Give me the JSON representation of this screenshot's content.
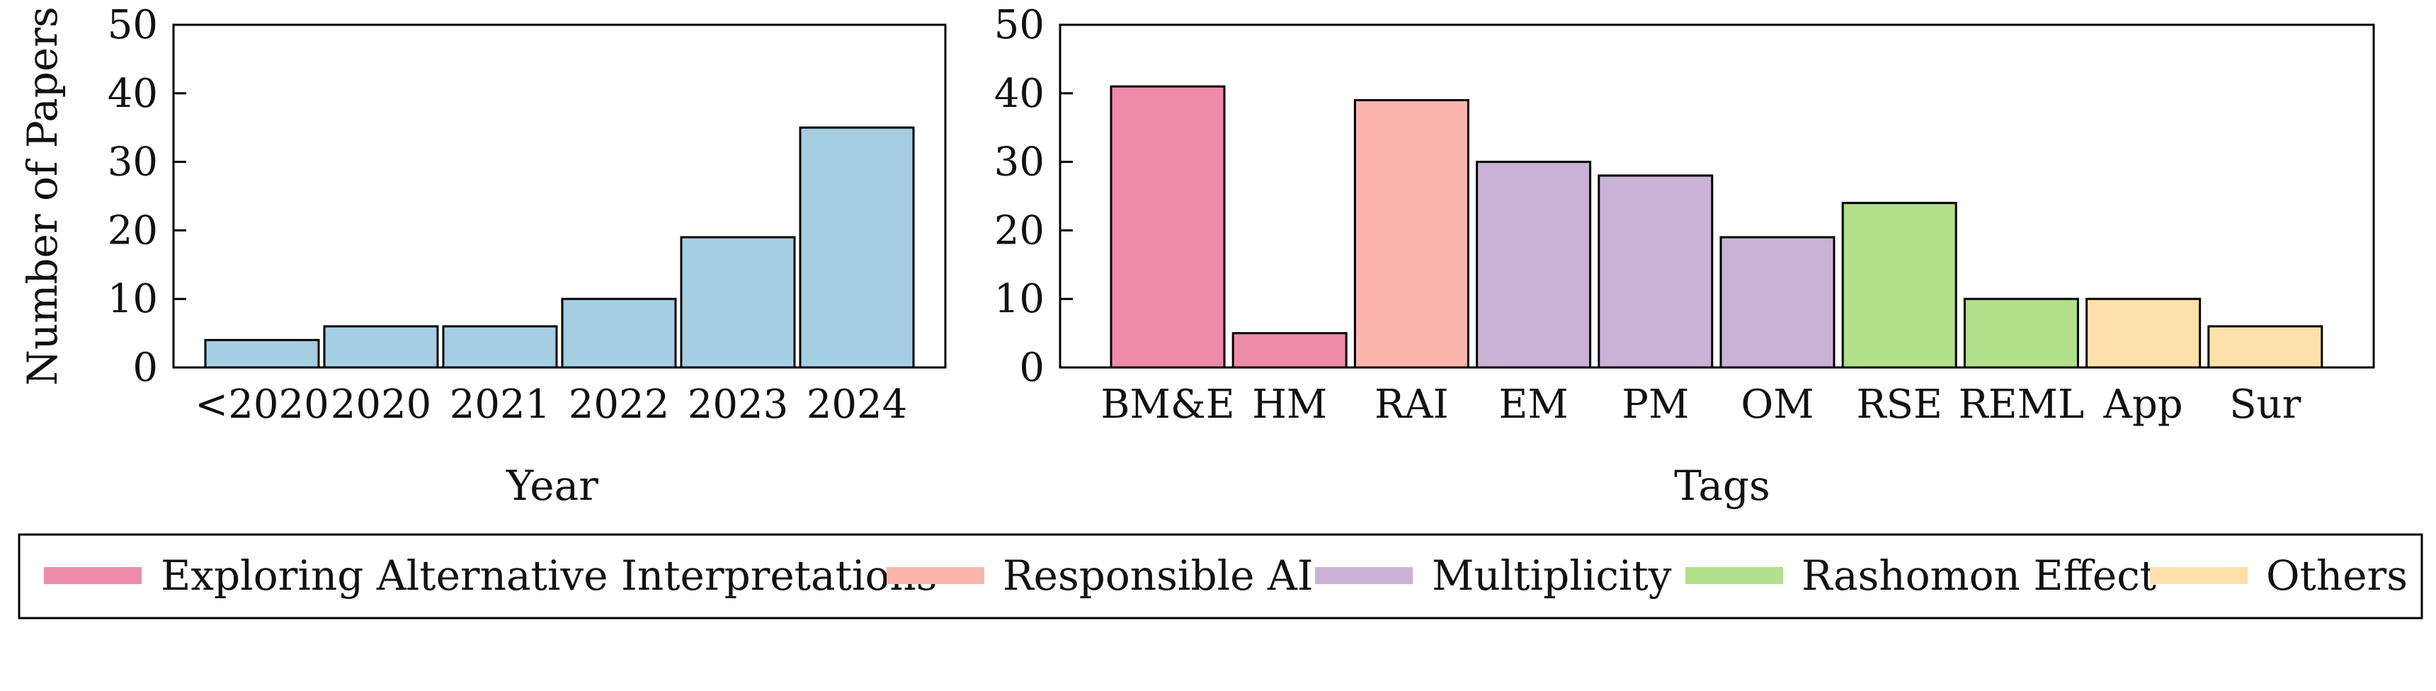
{
  "chart_data": [
    {
      "type": "bar",
      "title": "",
      "xlabel": "Year",
      "ylabel": "Number of Papers",
      "ylim": [
        0,
        50
      ],
      "yticks": [
        0,
        10,
        20,
        30,
        40,
        50
      ],
      "categories": [
        "<2020",
        "2020",
        "2021",
        "2022",
        "2023",
        "2024"
      ],
      "values": [
        4,
        6,
        6,
        10,
        19,
        35
      ],
      "bar_color": "#a6cee3"
    },
    {
      "type": "bar",
      "title": "",
      "xlabel": "Tags",
      "ylabel": "",
      "ylim": [
        0,
        50
      ],
      "yticks": [
        0,
        10,
        20,
        30,
        40,
        50
      ],
      "categories": [
        "BM&E",
        "HM",
        "RAI",
        "EM",
        "PM",
        "OM",
        "RSE",
        "REML",
        "App",
        "Sur"
      ],
      "values": [
        41,
        5,
        39,
        30,
        28,
        19,
        24,
        10,
        10,
        6
      ],
      "groups": [
        "Exploring Alternative Interpretations",
        "Exploring Alternative Interpretations",
        "Responsible AI",
        "Multiplicity",
        "Multiplicity",
        "Multiplicity",
        "Rashomon Effect",
        "Rashomon Effect",
        "Others",
        "Others"
      ]
    }
  ],
  "legend": {
    "placement": "bottom",
    "items": [
      {
        "label": "Exploring Alternative Interpretations",
        "color": "#f08aab"
      },
      {
        "label": "Responsible AI",
        "color": "#fbb4ae"
      },
      {
        "label": "Multiplicity",
        "color": "#cab2d6"
      },
      {
        "label": "Rashomon Effect",
        "color": "#b2df8a"
      },
      {
        "label": "Others",
        "color": "#fee1aa"
      }
    ]
  }
}
